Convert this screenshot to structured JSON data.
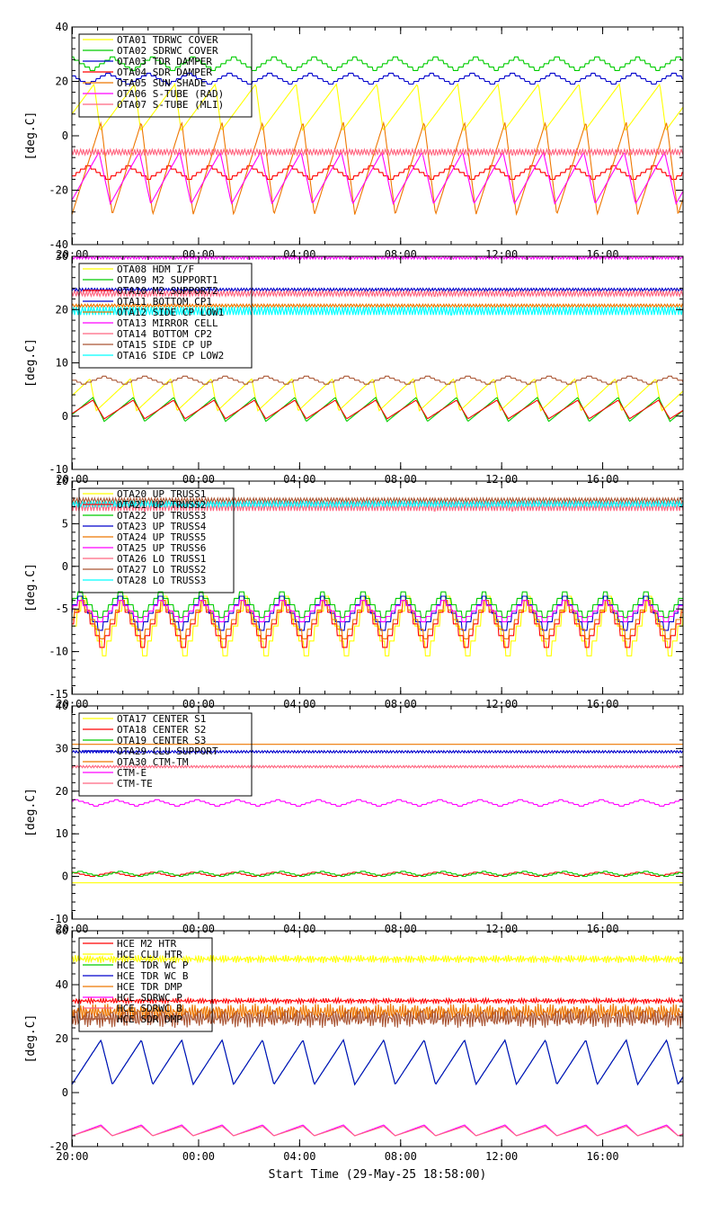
{
  "figure": {
    "start_time_label": "Start Time (29-May-25 18:58:00)"
  },
  "chart_data": [
    {
      "type": "line",
      "ylabel": "[deg.C]",
      "ylim": [
        -40,
        40
      ],
      "yticks": [
        -40,
        -20,
        0,
        20,
        40
      ],
      "xlim_hours": [
        0,
        24.2
      ],
      "x_tick_labels": [
        "20:00",
        "00:00",
        "04:00",
        "08:00",
        "12:00",
        "16:00"
      ],
      "legend_position": "top-left",
      "series": [
        {
          "name": "OTA01 TDRWC COVER",
          "color": "#ffff00",
          "shape": "ramp",
          "min": 2,
          "max": 19,
          "period": 1.6,
          "phase": 0.3
        },
        {
          "name": "OTA02 SDRWC COVER",
          "color": "#00cc00",
          "shape": "step",
          "min": 24,
          "max": 29,
          "period": 1.6,
          "phase": 0.5
        },
        {
          "name": "OTA03 TDR DAMPER",
          "color": "#0000cc",
          "shape": "step",
          "min": 19,
          "max": 23,
          "period": 1.6,
          "phase": 0.6
        },
        {
          "name": "OTA04 SDR DAMPER",
          "color": "#ff0000",
          "shape": "step",
          "min": -16,
          "max": -11,
          "period": 1.6,
          "phase": 0.1
        },
        {
          "name": "OTA05 SUN SHADE",
          "color": "#ee7700",
          "shape": "sawtooth",
          "min": -29,
          "max": 5,
          "period": 1.6,
          "phase": 0.0
        },
        {
          "name": "OTA06 S-TUBE (RAD)",
          "color": "#ff00ff",
          "shape": "sawtooth",
          "min": -25,
          "max": -6,
          "period": 1.6,
          "phase": 0.05
        },
        {
          "name": "OTA07 S-TUBE (MLI)",
          "color": "#ff6680",
          "shape": "flat",
          "min": -7,
          "max": -5,
          "period": 1.6,
          "phase": 0.0
        }
      ]
    },
    {
      "type": "line",
      "ylabel": "[deg.C]",
      "ylim": [
        -10,
        30
      ],
      "yticks": [
        -10,
        0,
        10,
        20,
        30
      ],
      "xlim_hours": [
        0,
        24.2
      ],
      "x_tick_labels": [
        "20:00",
        "00:00",
        "04:00",
        "08:00",
        "12:00",
        "16:00"
      ],
      "legend_position": "top-left",
      "series": [
        {
          "name": "OTA08 HDM I/F",
          "color": "#ffff00",
          "shape": "ramp",
          "min": 1,
          "max": 7,
          "period": 1.6,
          "phase": 0.4
        },
        {
          "name": "OTA09 M2 SUPPORT1",
          "color": "#00cc00",
          "shape": "sawtooth",
          "min": -1,
          "max": 3.5,
          "period": 1.6,
          "phase": 0.2
        },
        {
          "name": "OTA10 M2 SUPPORT2",
          "color": "#ff0000",
          "shape": "sawtooth",
          "min": -0.5,
          "max": 3,
          "period": 1.6,
          "phase": 0.2
        },
        {
          "name": "OTA11 BOTTOM CP1",
          "color": "#0000cc",
          "shape": "flat",
          "min": 23.5,
          "max": 24,
          "period": 1.6,
          "phase": 0.0
        },
        {
          "name": "OTA12 SIDE CP LOW1",
          "color": "#ee7700",
          "shape": "flat",
          "min": 20.5,
          "max": 21,
          "period": 1.6,
          "phase": 0.0
        },
        {
          "name": "OTA13 MIRROR CELL",
          "color": "#ff00ff",
          "shape": "flat",
          "min": 29.5,
          "max": 30,
          "period": 1.6,
          "phase": 0.0
        },
        {
          "name": "OTA14 BOTTOM CP2",
          "color": "#ff6680",
          "shape": "flat",
          "min": 22.5,
          "max": 23.5,
          "period": 1.6,
          "phase": 0.0
        },
        {
          "name": "OTA15 SIDE CP UP",
          "color": "#aa5533",
          "shape": "step",
          "min": 6,
          "max": 7.5,
          "period": 1.6,
          "phase": 0.7
        },
        {
          "name": "OTA16 SIDE CP LOW2",
          "color": "#00ffff",
          "shape": "flat",
          "min": 19,
          "max": 20.5,
          "period": 1.6,
          "phase": 0.0
        }
      ]
    },
    {
      "type": "line",
      "ylabel": "[deg.C]",
      "ylim": [
        -15,
        10
      ],
      "yticks": [
        -15,
        -10,
        -5,
        0,
        5,
        10
      ],
      "xlim_hours": [
        0,
        24.2
      ],
      "x_tick_labels": [
        "20:00",
        "00:00",
        "04:00",
        "08:00",
        "12:00",
        "16:00"
      ],
      "legend_position": "top-left",
      "series": [
        {
          "name": "OTA20 UP TRUSS1",
          "color": "#ffff00",
          "shape": "step",
          "min": -10.5,
          "max": -3.5,
          "period": 1.6,
          "phase": 0.2
        },
        {
          "name": "OTA21 UP TRUSS2",
          "color": "#ff0000",
          "shape": "step",
          "min": -9.5,
          "max": -4,
          "period": 1.6,
          "phase": 0.25
        },
        {
          "name": "OTA22 UP TRUSS3",
          "color": "#00cc00",
          "shape": "step",
          "min": -6,
          "max": -3,
          "period": 1.6,
          "phase": 0.3
        },
        {
          "name": "OTA23 UP TRUSS4",
          "color": "#0000cc",
          "shape": "step",
          "min": -7.5,
          "max": -3.5,
          "period": 1.6,
          "phase": 0.3
        },
        {
          "name": "OTA24 UP TRUSS5",
          "color": "#ee7700",
          "shape": "step",
          "min": -8.5,
          "max": -4,
          "period": 1.6,
          "phase": 0.25
        },
        {
          "name": "OTA25 UP TRUSS6",
          "color": "#ff00ff",
          "shape": "step",
          "min": -6.5,
          "max": -4,
          "period": 1.6,
          "phase": 0.3
        },
        {
          "name": "OTA26 LO TRUSS1",
          "color": "#ff6680",
          "shape": "flat",
          "min": 6.5,
          "max": 7.5,
          "period": 1.6,
          "phase": 0.0
        },
        {
          "name": "OTA27 LO TRUSS2",
          "color": "#aa5533",
          "shape": "flat",
          "min": 7.5,
          "max": 8,
          "period": 1.6,
          "phase": 0.0
        },
        {
          "name": "OTA28 LO TRUSS3",
          "color": "#00ffff",
          "shape": "flat",
          "min": 7,
          "max": 7.6,
          "period": 1.6,
          "phase": 0.0
        }
      ]
    },
    {
      "type": "line",
      "ylabel": "[deg.C]",
      "ylim": [
        -10,
        40
      ],
      "yticks": [
        -10,
        0,
        10,
        20,
        30,
        40
      ],
      "xlim_hours": [
        0,
        24.2
      ],
      "x_tick_labels": [
        "20:00",
        "00:00",
        "04:00",
        "08:00",
        "12:00",
        "16:00"
      ],
      "legend_position": "top-left",
      "series": [
        {
          "name": "OTA17 CENTER S1",
          "color": "#ffff00",
          "shape": "flat",
          "min": -1.5,
          "max": -1.5,
          "period": 1.6,
          "phase": 0.0
        },
        {
          "name": "OTA18 CENTER S2",
          "color": "#ff0000",
          "shape": "step",
          "min": 0,
          "max": 1,
          "period": 1.6,
          "phase": 0.5
        },
        {
          "name": "OTA19 CENTER S3",
          "color": "#00cc00",
          "shape": "step",
          "min": 0,
          "max": 1.2,
          "period": 1.6,
          "phase": 0.3
        },
        {
          "name": "OTA29 CLU SUPPORT",
          "color": "#0000cc",
          "shape": "flat",
          "min": 29,
          "max": 29.5,
          "period": 1.6,
          "phase": 0.0
        },
        {
          "name": "OTA30 CTM-TM",
          "color": "#ee7700",
          "shape": "flat",
          "min": 31,
          "max": 31,
          "period": 1.6,
          "phase": 0.0
        },
        {
          "name": "CTM-E",
          "color": "#ff00ff",
          "shape": "step",
          "min": 16.5,
          "max": 18,
          "period": 1.6,
          "phase": 0.4
        },
        {
          "name": "CTM-TE",
          "color": "#ff6680",
          "shape": "flat",
          "min": 25.5,
          "max": 26,
          "period": 1.6,
          "phase": 0.0
        }
      ]
    },
    {
      "type": "line",
      "ylabel": "[deg.C]",
      "ylim": [
        -20,
        60
      ],
      "yticks": [
        -20,
        0,
        20,
        40,
        60
      ],
      "xlim_hours": [
        0,
        24.2
      ],
      "x_tick_labels": [
        "20:00",
        "00:00",
        "04:00",
        "08:00",
        "12:00",
        "16:00"
      ],
      "legend_position": "top-left",
      "series": [
        {
          "name": "HCE M2 HTR",
          "color": "#ff0000",
          "shape": "noisy",
          "min": 33,
          "max": 35,
          "period": 1.6,
          "phase": 0.0
        },
        {
          "name": "HCE CLU HTR",
          "color": "#ffff00",
          "shape": "noisy",
          "min": 48,
          "max": 51,
          "period": 1.6,
          "phase": 0.0
        },
        {
          "name": "HCE TDR WC P",
          "color": "#00cc00",
          "shape": "sawtooth",
          "min": 3,
          "max": 19.5,
          "period": 1.6,
          "phase": 0.0
        },
        {
          "name": "HCE TDR WC B",
          "color": "#0000cc",
          "shape": "sawtooth",
          "min": 3,
          "max": 19.5,
          "period": 1.6,
          "phase": 0.0
        },
        {
          "name": "HCE TDR DMP",
          "color": "#ee7700",
          "shape": "noisy",
          "min": 27,
          "max": 33,
          "period": 1.6,
          "phase": 0.0
        },
        {
          "name": "HCE SDRWC P",
          "color": "#ff00ff",
          "shape": "sawtooth",
          "min": -16,
          "max": -12,
          "period": 1.6,
          "phase": 0.0
        },
        {
          "name": "HCE SDRWC B",
          "color": "#ff6680",
          "shape": "sawtooth",
          "min": -16,
          "max": -12.5,
          "period": 1.6,
          "phase": 0.0
        },
        {
          "name": "HCE SDR DMP",
          "color": "#aa5533",
          "shape": "noisy",
          "min": 24,
          "max": 31,
          "period": 1.6,
          "phase": 0.0
        }
      ]
    }
  ]
}
